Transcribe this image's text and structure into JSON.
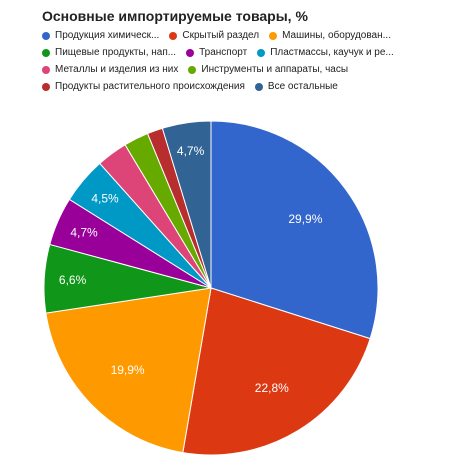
{
  "chart_data": {
    "type": "pie",
    "title": "Основные импортируемые товары, %",
    "legend_position": "top",
    "slices": [
      {
        "label": "Продукция химическ...",
        "value": 29.9,
        "display": "29,9%",
        "color": "#3366cc"
      },
      {
        "label": "Скрытый раздел",
        "value": 22.8,
        "display": "22,8%",
        "color": "#dc3912"
      },
      {
        "label": "Машины, оборудован...",
        "value": 19.9,
        "display": "19,9%",
        "color": "#ff9900"
      },
      {
        "label": "Пищевые продукты, нап...",
        "value": 6.6,
        "display": "6,6%",
        "color": "#109618"
      },
      {
        "label": "Транспорт",
        "value": 4.7,
        "display": "4,7%",
        "color": "#990099"
      },
      {
        "label": "Пластмассы, каучук и ре...",
        "value": 4.5,
        "display": "4,5%",
        "color": "#0099c6"
      },
      {
        "label": "Металлы и изделия из них",
        "value": 3.0,
        "display": "",
        "color": "#dd4477"
      },
      {
        "label": "Инструменты и аппараты, часы",
        "value": 2.4,
        "display": "",
        "color": "#66aa00"
      },
      {
        "label": "Продукты растительного происхождения",
        "value": 1.5,
        "display": "",
        "color": "#b82e2e"
      },
      {
        "label": "Все остальные",
        "value": 4.7,
        "display": "4,7%",
        "color": "#316395"
      }
    ]
  }
}
